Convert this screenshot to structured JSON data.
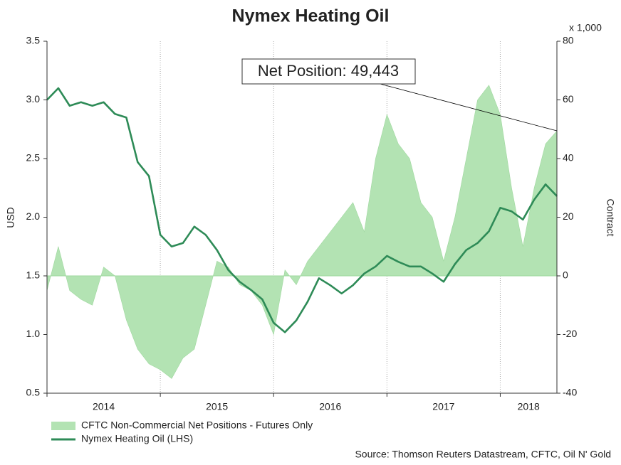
{
  "chart_data": {
    "type": "line",
    "title": "Nymex Heating Oil",
    "ylabel": "USD",
    "y2label": "Contract",
    "y2unit": "x 1,000",
    "annotation": "Net Position: 49,443",
    "source": "Source: Thomson Reuters Datastream, CFTC, Oil N' Gold",
    "x": [
      2014.0,
      2014.1,
      2014.2,
      2014.3,
      2014.4,
      2014.5,
      2014.6,
      2014.7,
      2014.8,
      2014.9,
      2015.0,
      2015.1,
      2015.2,
      2015.3,
      2015.4,
      2015.5,
      2015.6,
      2015.7,
      2015.8,
      2015.9,
      2016.0,
      2016.1,
      2016.2,
      2016.3,
      2016.4,
      2016.5,
      2016.6,
      2016.7,
      2016.8,
      2016.9,
      2017.0,
      2017.1,
      2017.2,
      2017.3,
      2017.4,
      2017.5,
      2017.6,
      2017.7,
      2017.8,
      2017.9,
      2018.0,
      2018.1,
      2018.2,
      2018.3,
      2018.4,
      2018.5
    ],
    "xlim": [
      2014,
      2018.5
    ],
    "xticks": [
      2014,
      2015,
      2016,
      2017,
      2018
    ],
    "ylim": [
      0.5,
      3.5
    ],
    "yticks": [
      0.5,
      {
        "value": 1,
        "label": "1.0"
      },
      1.5,
      {
        "value": 2,
        "label": "2.0"
      },
      2.5,
      {
        "value": 3,
        "label": "3.0"
      },
      3.5
    ],
    "y2lim": [
      -40,
      80
    ],
    "y2ticks": [
      -40,
      -20,
      0,
      20,
      40,
      60,
      80
    ],
    "grid": true,
    "series": [
      {
        "name": "CFTC Non-Commercial Net Positions - Futures Only",
        "kind": "area",
        "axis": "y2",
        "color": "#b3e3b3",
        "values": [
          -5,
          10,
          -5,
          -8,
          -10,
          3,
          0,
          -15,
          -25,
          -30,
          -32,
          -35,
          -28,
          -25,
          -10,
          5,
          3,
          -3,
          -5,
          -10,
          -20,
          2,
          -3,
          5,
          10,
          15,
          20,
          25,
          15,
          40,
          55,
          45,
          40,
          25,
          20,
          5,
          20,
          40,
          60,
          65,
          55,
          30,
          10,
          30,
          45,
          49.443
        ]
      },
      {
        "name": "Nymex Heating Oil (LHS)",
        "kind": "line",
        "color": "#2e8b57",
        "values": [
          3.0,
          3.1,
          2.95,
          2.98,
          2.95,
          2.98,
          2.88,
          2.85,
          2.47,
          2.35,
          1.85,
          1.75,
          1.78,
          1.92,
          1.85,
          1.72,
          1.55,
          1.45,
          1.38,
          1.3,
          1.1,
          1.02,
          1.12,
          1.28,
          1.48,
          1.42,
          1.35,
          1.42,
          1.52,
          1.58,
          1.67,
          1.62,
          1.58,
          1.58,
          1.52,
          1.45,
          1.6,
          1.72,
          1.78,
          1.88,
          2.08,
          2.05,
          1.98,
          2.15,
          2.28,
          2.18
        ]
      }
    ]
  }
}
